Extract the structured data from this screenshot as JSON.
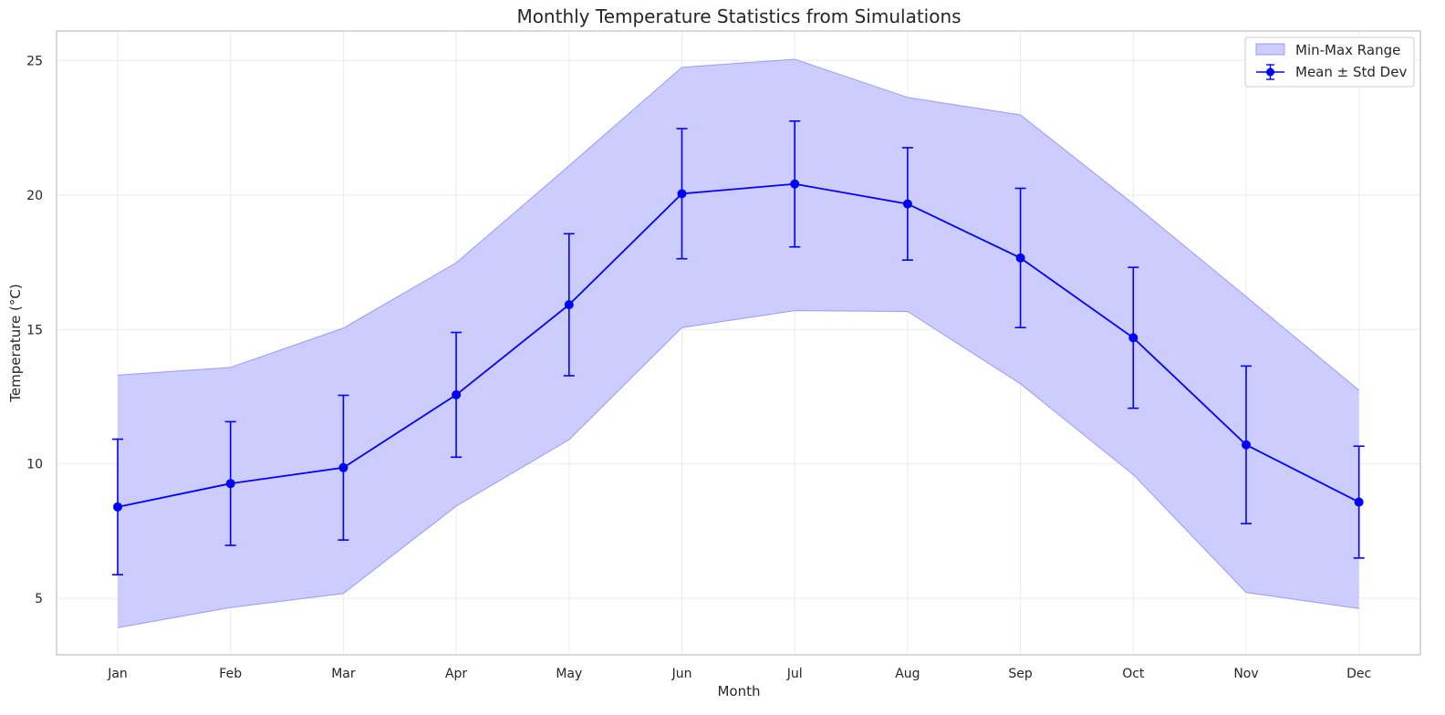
{
  "chart_data": {
    "type": "line",
    "title": "Monthly Temperature Statistics from Simulations",
    "xlabel": "Month",
    "ylabel": "Temperature (°C)",
    "categories": [
      "Jan",
      "Feb",
      "Mar",
      "Apr",
      "May",
      "Jun",
      "Jul",
      "Aug",
      "Sep",
      "Oct",
      "Nov",
      "Dec"
    ],
    "yticks": [
      5,
      10,
      15,
      20,
      25
    ],
    "ylim": [
      2.9,
      26.1
    ],
    "grid": true,
    "legend_position": "top-right",
    "series": [
      {
        "name": "Mean ± Std Dev",
        "kind": "line-errorbar",
        "color": "#0000ff",
        "values": [
          8.4,
          9.27,
          9.86,
          12.57,
          15.92,
          20.05,
          20.41,
          19.67,
          17.66,
          14.69,
          10.71,
          8.58
        ],
        "std": [
          2.52,
          2.3,
          2.69,
          2.32,
          2.64,
          2.42,
          2.34,
          2.09,
          2.59,
          2.62,
          2.93,
          2.08
        ]
      },
      {
        "name": "Min-Max Range",
        "kind": "band",
        "color": "#0000ff",
        "fill_color": "#ccccff",
        "min": [
          3.91,
          4.66,
          5.18,
          8.43,
          10.9,
          15.07,
          15.7,
          15.67,
          12.98,
          9.6,
          5.22,
          4.62
        ],
        "max": [
          13.3,
          13.59,
          15.05,
          17.48,
          21.09,
          24.75,
          25.05,
          23.63,
          22.98,
          19.67,
          16.22,
          12.74
        ]
      }
    ]
  }
}
